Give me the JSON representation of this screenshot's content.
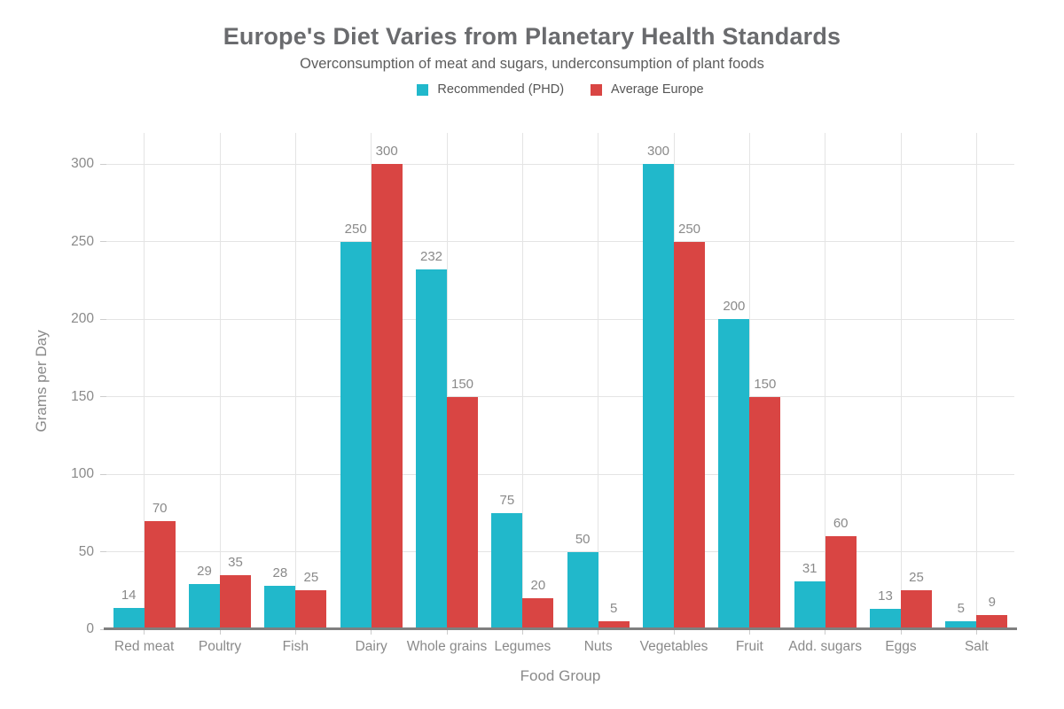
{
  "chart_data": {
    "type": "bar",
    "title": "Europe's Diet Varies from Planetary Health Standards",
    "subtitle": "Overconsumption of meat and sugars, underconsumption of plant foods",
    "xlabel": "Food Group",
    "ylabel": "Grams per Day",
    "categories": [
      "Red meat",
      "Poultry",
      "Fish",
      "Dairy",
      "Whole grains",
      "Legumes",
      "Nuts",
      "Vegetables",
      "Fruit",
      "Add. sugars",
      "Eggs",
      "Salt"
    ],
    "series": [
      {
        "name": "Recommended (PHD)",
        "color": "#21b8cb",
        "values": [
          14,
          29,
          28,
          250,
          232,
          75,
          50,
          300,
          200,
          31,
          13,
          5
        ]
      },
      {
        "name": "Average Europe",
        "color": "#d94543",
        "values": [
          70,
          35,
          25,
          300,
          150,
          20,
          5,
          250,
          150,
          60,
          25,
          9
        ]
      }
    ],
    "yticks": [
      0,
      50,
      100,
      150,
      200,
      250,
      300
    ],
    "ylim": [
      0,
      320
    ],
    "grid": true,
    "legend_position": "top-center",
    "bar_value_labels": true
  }
}
